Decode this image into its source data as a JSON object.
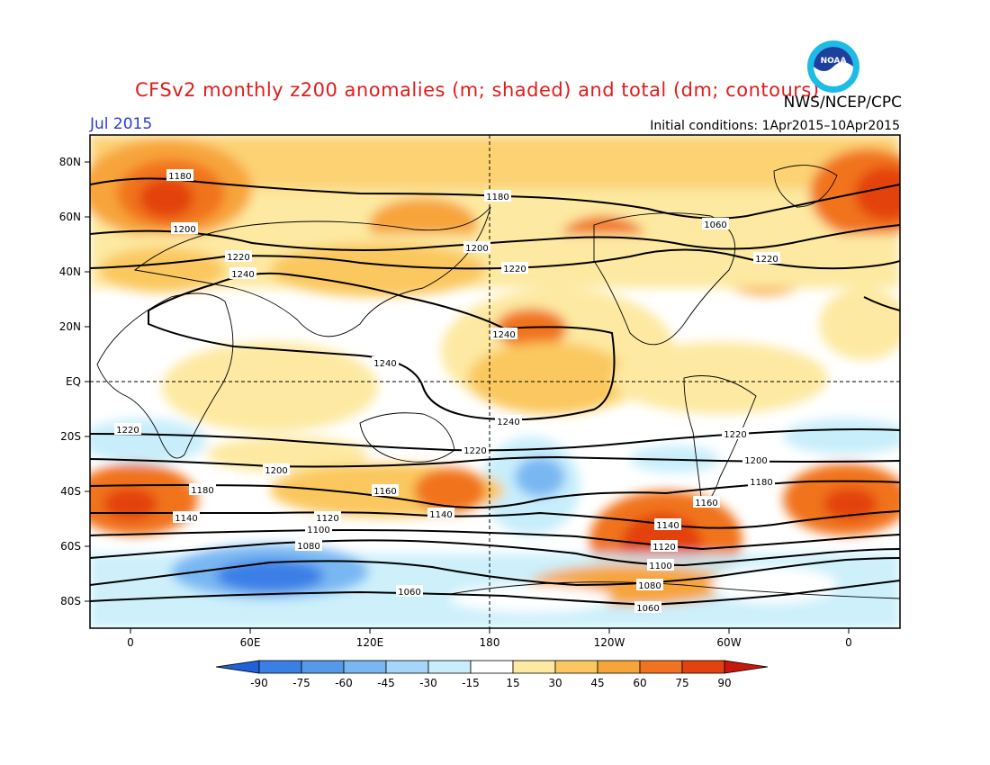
{
  "header": {
    "title": "CFSv2 monthly z200 anomalies (m; shaded) and total (dm; contours)",
    "agency": "NWS/NCEP/CPC",
    "month": "Jul 2015",
    "initial_conditions": "Initial conditions: 1Apr2015–10Apr2015",
    "logo_text": "NOAA"
  },
  "map": {
    "lat_labels": [
      "80N",
      "60N",
      "40N",
      "20N",
      "EQ",
      "20S",
      "40S",
      "60S",
      "80S"
    ],
    "lon_labels": [
      "0",
      "60E",
      "120E",
      "180",
      "120W",
      "60W",
      "0"
    ],
    "contour_values": [
      "1180",
      "1200",
      "1220",
      "1240",
      "1180",
      "1200",
      "1220",
      "1240",
      "1220",
      "1240",
      "1240",
      "1220",
      "1220",
      "1200",
      "1180",
      "1160",
      "1140",
      "1120",
      "1100",
      "1080",
      "1060",
      "1060",
      "1220",
      "1200",
      "1180",
      "1160",
      "1140",
      "1120",
      "1100",
      "1080",
      "1060",
      "1140"
    ]
  },
  "colorbar": {
    "labels": [
      "-90",
      "-75",
      "-60",
      "-45",
      "-30",
      "-15",
      "15",
      "30",
      "45",
      "60",
      "75",
      "90"
    ],
    "colors": [
      "#1f62d8",
      "#3a7fe6",
      "#5499ea",
      "#79b7f2",
      "#a6d6f7",
      "#c8eefb",
      "#ffffff",
      "#fde9a1",
      "#fbc85f",
      "#f7a43b",
      "#f1731f",
      "#e3420f",
      "#c8170c"
    ]
  }
}
